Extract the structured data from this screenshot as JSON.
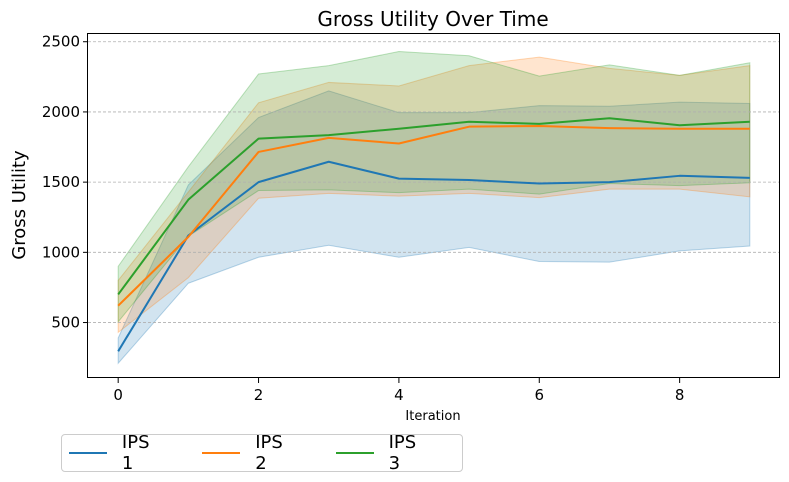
{
  "chart_data": {
    "type": "line",
    "title": "Gross Utility Over Time",
    "xlabel": "Iteration",
    "ylabel": "Gross Utility",
    "x": [
      0,
      1,
      2,
      3,
      4,
      5,
      6,
      7,
      8,
      9
    ],
    "xlim": [
      -0.43,
      9.43
    ],
    "ylim": [
      105,
      2555
    ],
    "x_ticks": [
      0,
      2,
      4,
      6,
      8
    ],
    "y_ticks": [
      500,
      1000,
      1500,
      2000,
      2500
    ],
    "grid": "horizontal dashed",
    "legend_placement": "below-left",
    "series": [
      {
        "name": "IPS 1",
        "color": "#1f77b4",
        "values": [
          295,
          1120,
          1500,
          1645,
          1525,
          1515,
          1490,
          1500,
          1545,
          1530
        ],
        "lower": [
          210,
          780,
          965,
          1050,
          965,
          1035,
          935,
          930,
          1010,
          1045
        ],
        "upper": [
          390,
          1480,
          1960,
          2150,
          1995,
          1995,
          2045,
          2040,
          2070,
          2060
        ]
      },
      {
        "name": "IPS 2",
        "color": "#ff7f0e",
        "values": [
          620,
          1110,
          1715,
          1815,
          1775,
          1895,
          1900,
          1885,
          1880,
          1880
        ],
        "lower": [
          430,
          820,
          1385,
          1420,
          1400,
          1420,
          1390,
          1450,
          1450,
          1395
        ],
        "upper": [
          800,
          1430,
          2065,
          2210,
          2185,
          2330,
          2390,
          2310,
          2260,
          2330
        ]
      },
      {
        "name": "IPS 3",
        "color": "#2ca02c",
        "values": [
          700,
          1375,
          1810,
          1835,
          1880,
          1930,
          1915,
          1955,
          1905,
          1930
        ],
        "lower": [
          505,
          1115,
          1440,
          1445,
          1425,
          1450,
          1415,
          1490,
          1475,
          1495
        ],
        "upper": [
          900,
          1610,
          2270,
          2330,
          2430,
          2400,
          2255,
          2335,
          2260,
          2350
        ]
      }
    ]
  }
}
